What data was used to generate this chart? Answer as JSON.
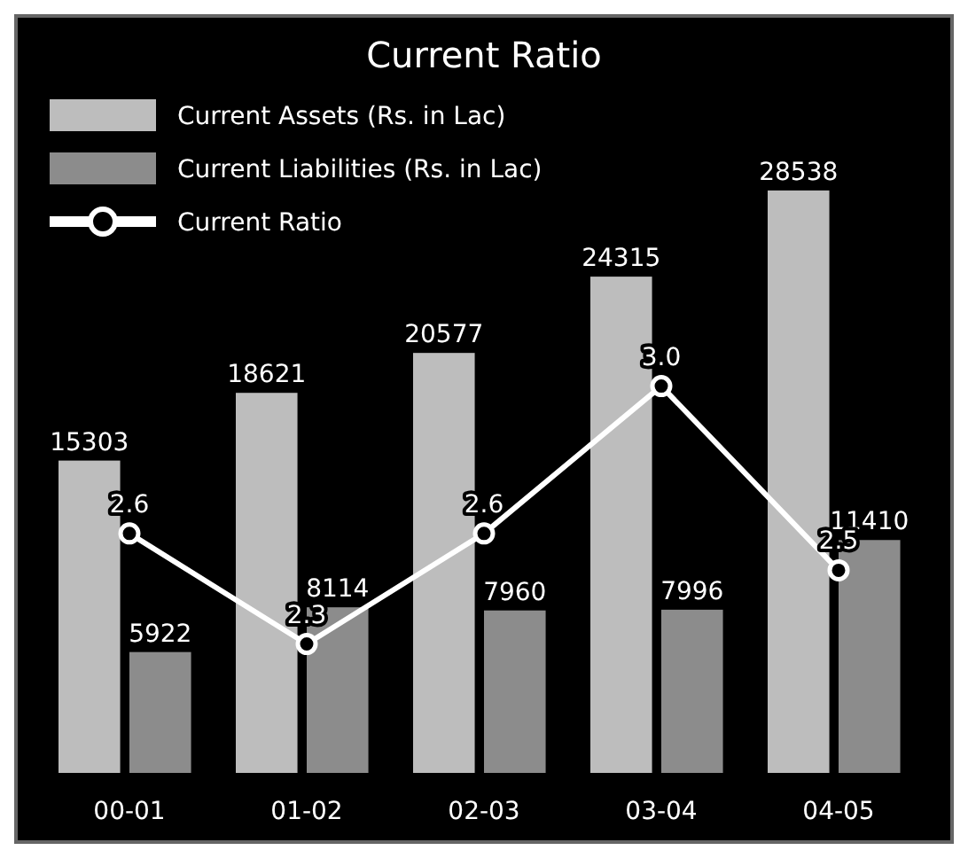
{
  "chart_data": {
    "type": "bar",
    "title": "Current Ratio",
    "categories": [
      "00-01",
      "01-02",
      "02-03",
      "03-04",
      "04-05"
    ],
    "series": [
      {
        "name": "Current Assets (Rs. in Lac)",
        "color": "#bdbdbd",
        "values": [
          15303,
          18621,
          20577,
          24315,
          28538
        ]
      },
      {
        "name": "Current Liabilities (Rs. in Lac)",
        "color": "#8c8c8c",
        "values": [
          5922,
          8114,
          7960,
          7996,
          11410
        ]
      },
      {
        "name": "Current Ratio",
        "type": "line",
        "axis": "y2",
        "color": "#ffffff",
        "marker": "circle",
        "values": [
          2.6,
          2.3,
          2.6,
          3.0,
          2.5
        ],
        "value_labels": [
          "2.6",
          "2.3",
          "2.6",
          "3.0",
          "2.5"
        ]
      }
    ],
    "ylim": [
      0,
      37000
    ],
    "y2lim": [
      1.95,
      4.0
    ],
    "tick_labels": "x",
    "data_labels": true,
    "legend": "top left"
  }
}
